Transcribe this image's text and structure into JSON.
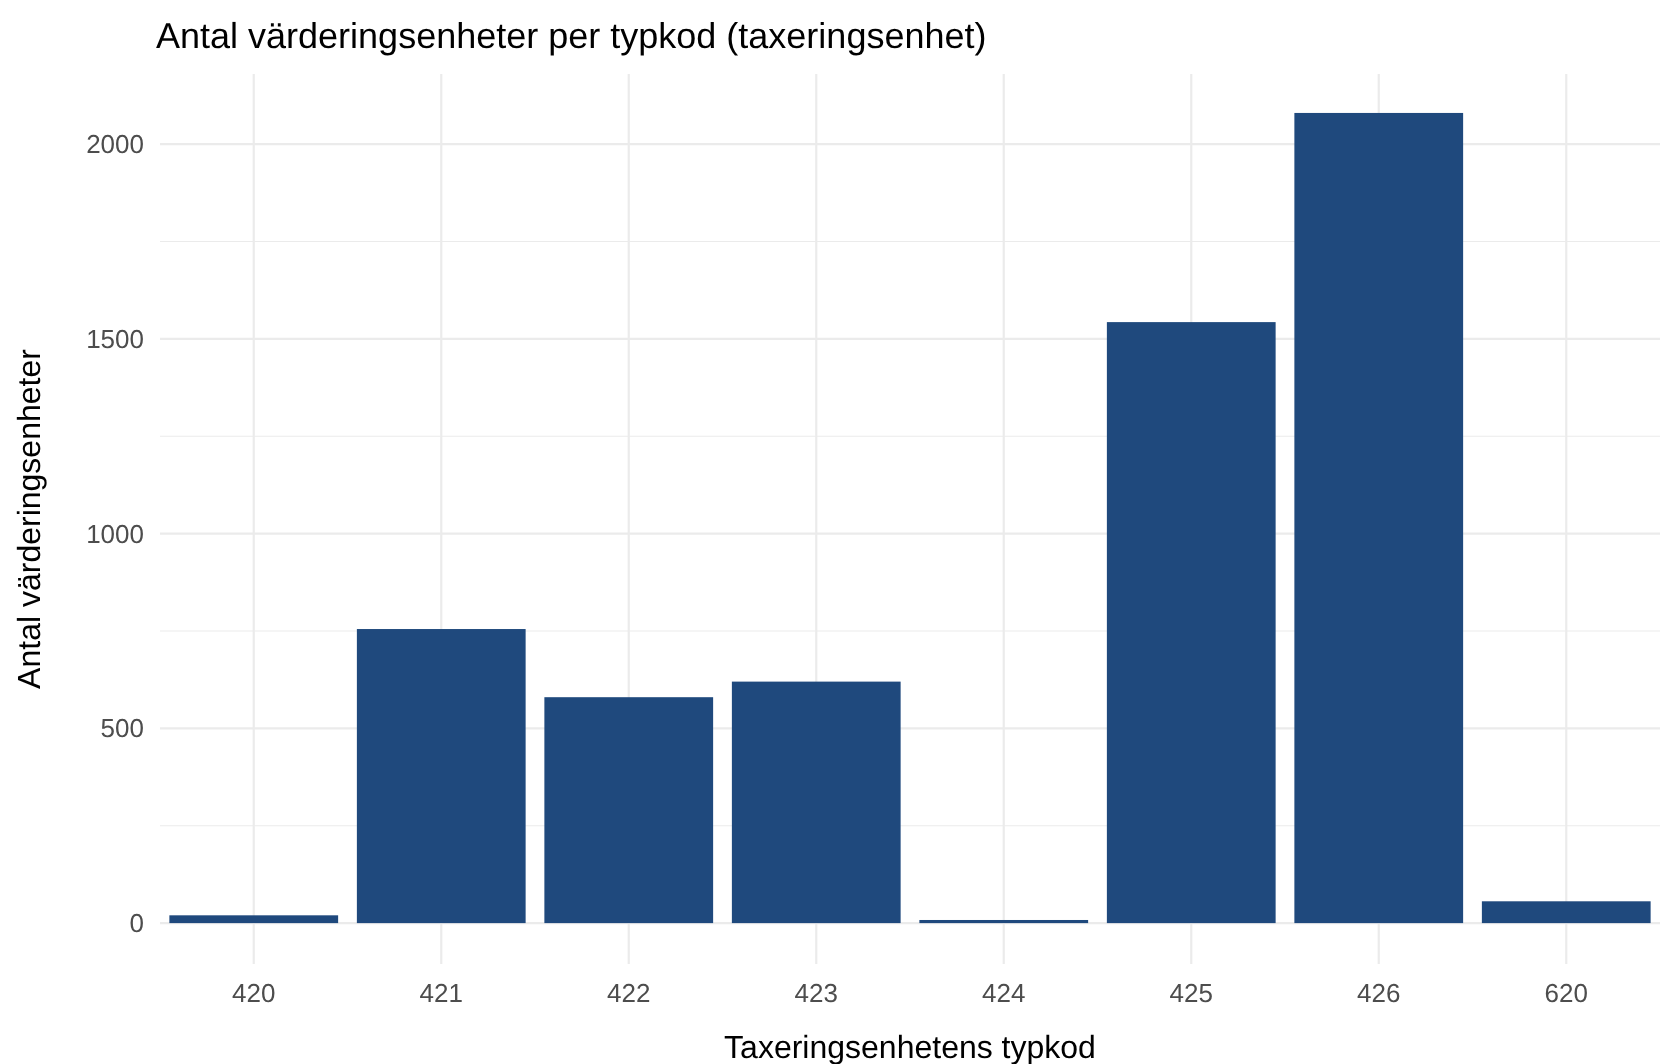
{
  "chart_data": {
    "type": "bar",
    "title": "Antal värderingsenheter per typkod (taxeringsenhet)",
    "xlabel": "Taxeringsenhetens typkod",
    "ylabel": "Antal värderingsenheter",
    "categories": [
      "420",
      "421",
      "422",
      "423",
      "424",
      "425",
      "426",
      "620"
    ],
    "values": [
      20,
      755,
      580,
      620,
      8,
      1543,
      2080,
      56
    ],
    "color": "#1f497d",
    "ylim": [
      -105,
      2180
    ],
    "yticks": [
      0,
      {
        "value": 250,
        "label": null
      },
      500,
      {
        "value": 750,
        "label": null
      },
      1000,
      {
        "value": 1250,
        "label": null
      },
      1500,
      {
        "value": 1750,
        "label": null
      },
      2000
    ],
    "grid": true
  }
}
